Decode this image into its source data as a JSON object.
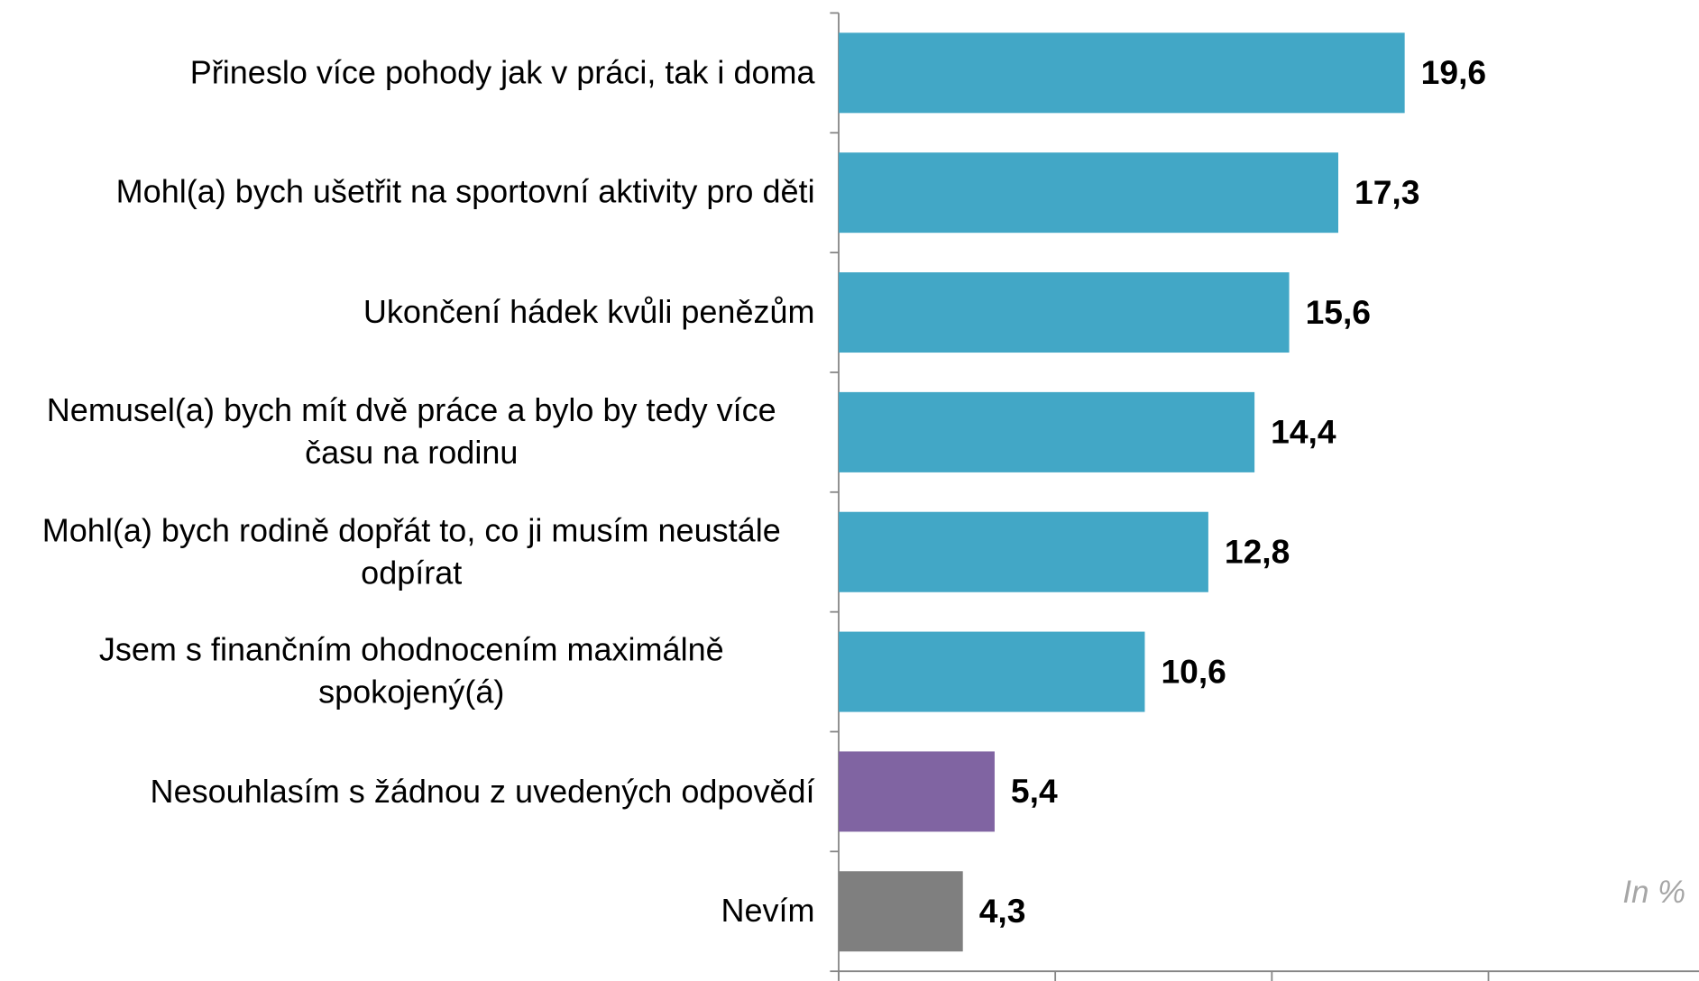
{
  "chart_data": {
    "type": "bar",
    "orientation": "horizontal",
    "categories": [
      "Přineslo více pohody jak v práci, tak i doma",
      "Mohl(a) bych ušetřit na sportovní aktivity pro děti",
      "Ukončení hádek kvůli penězům",
      "Nemusel(a) bych mít dvě práce a bylo by tedy více času na rodinu",
      "Mohl(a) bych rodině dopřát to, co ji musím neustále odpírat",
      "Jsem s finančním ohodnocením maximálně spokojený(á)",
      "Nesouhlasím s žádnou z uvedených odpovědí",
      "Nevím"
    ],
    "values": [
      19.6,
      17.3,
      15.6,
      14.4,
      12.8,
      10.6,
      5.4,
      4.3
    ],
    "value_labels": [
      "19,6",
      "17,3",
      "15,6",
      "14,4",
      "12,8",
      "10,6",
      "5,4",
      "4,3"
    ],
    "colors": [
      "#42a7c6",
      "#42a7c6",
      "#42a7c6",
      "#42a7c6",
      "#42a7c6",
      "#42a7c6",
      "#8064a2",
      "#7f7f7f"
    ],
    "xlim": [
      0,
      30
    ],
    "xticks": [
      0,
      7.5,
      15,
      22.5,
      30
    ],
    "annotation": "In %"
  }
}
